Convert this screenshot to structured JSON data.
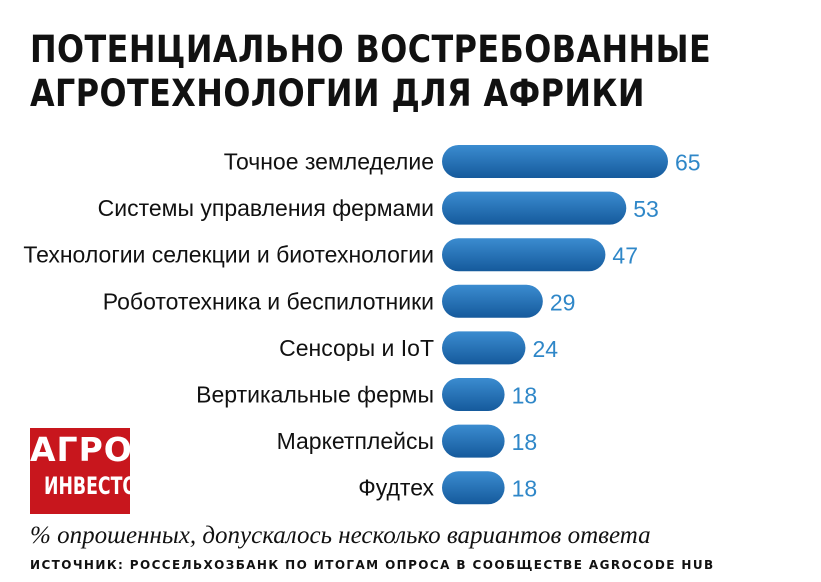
{
  "title_lines": [
    "ПОТЕНЦИАЛЬНО ВОСТРЕБОВАННЫЕ",
    "АГРОТЕХНОЛОГИИ ДЛЯ АФРИКИ"
  ],
  "logo": {
    "line1": "АГРО",
    "line2": "ИНВЕСТОР",
    "color": "#c8161d"
  },
  "note": "% опрошенных, допускалось несколько вариантов ответа",
  "source": "ИСТОЧНИК: РОССЕЛЬХОЗБАНК ПО ИТОГАМ ОПРОСА В СООБЩЕСТВЕ AGROCODE HUB",
  "colors": {
    "bar_dark": "#155a9c",
    "bar_light": "#3b8cd0",
    "value_text": "#2f87c8"
  },
  "chart_data": {
    "type": "bar",
    "orientation": "horizontal",
    "title": "ПОТЕНЦИАЛЬНО ВОСТРЕБОВАННЫЕ АГРОТЕХНОЛОГИИ ДЛЯ АФРИКИ",
    "categories": [
      "Точное земледелие",
      "Системы управления фермами",
      "Технологии селекции и биотехнологии",
      "Робототехника и беспилотники",
      "Сенсоры и IoT",
      "Вертикальные фермы",
      "Маркетплейсы",
      "Фудтех"
    ],
    "values": [
      65,
      53,
      47,
      29,
      24,
      18,
      18,
      18
    ],
    "xlim": [
      0,
      65
    ],
    "grid": false,
    "legend": "none"
  }
}
